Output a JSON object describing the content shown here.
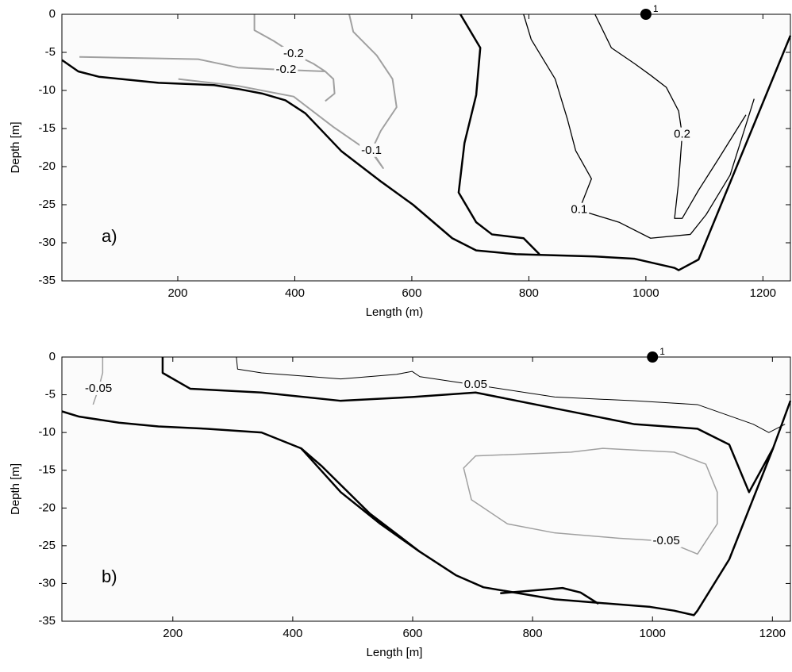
{
  "chart_data": [
    {
      "type": "contour",
      "panel_label": "a)",
      "x_label": "Length (m)",
      "y_label": "Depth [m]",
      "xlim": [
        2,
        1247
      ],
      "ylim": [
        -35,
        0
      ],
      "xticks": [
        200,
        400,
        600,
        800,
        1000,
        1200
      ],
      "yticks": [
        0,
        -5,
        -10,
        -15,
        -20,
        -25,
        -30,
        -35
      ],
      "station": {
        "x": 1000,
        "y": 0,
        "label": "1"
      },
      "contours": [
        {
          "color": "#000000",
          "line_width": 2.5,
          "x": [
            2,
            30,
            65,
            167,
            262,
            303,
            344,
            384,
            418,
            480,
            548,
            602,
            669,
            710,
            778,
            913,
            981,
            1049,
            1056,
            1090,
            1247
          ],
          "y": [
            -6,
            -7.5,
            -8.2,
            -9,
            -9.3,
            -9.8,
            -10.4,
            -11.3,
            -13,
            -18,
            -22,
            -25,
            -29.4,
            -31,
            -31.5,
            -31.8,
            -32.1,
            -33.3,
            -33.6,
            -32.2,
            -2.8
          ]
        },
        {
          "color": "#000000",
          "line_width": 2.5,
          "x": [
            683,
            717,
            710,
            690,
            680,
            710,
            737,
            791,
            818
          ],
          "y": [
            0,
            -4.4,
            -10.6,
            -16.9,
            -23.4,
            -27.3,
            -28.9,
            -29.4,
            -31.5
          ]
        },
        {
          "label": "-0.2",
          "color": "#a0a0a0",
          "line_width": 2,
          "x": [
            32,
            100,
            167,
            235,
            303,
            385,
            452,
            466,
            468,
            452
          ],
          "y": [
            -5.6,
            -5.7,
            -5.8,
            -5.9,
            -7,
            -7.3,
            -7.5,
            -8.5,
            -10.4,
            -11.4
          ]
        },
        {
          "label": "-0.2",
          "color": "#a0a0a0",
          "line_width": 2,
          "x": [
            331,
            331,
            364,
            398,
            432,
            452
          ],
          "y": [
            0,
            -2.1,
            -3.5,
            -5.2,
            -6.5,
            -7.5
          ]
        },
        {
          "label": "-0.1",
          "color": "#a0a0a0",
          "line_width": 2,
          "x": [
            201,
            303,
            398,
            466,
            534,
            551,
            531,
            547,
            574,
            567,
            540,
            500,
            493
          ],
          "y": [
            -8.5,
            -9.4,
            -10.8,
            -14.8,
            -18.4,
            -20.2,
            -17.9,
            -15.3,
            -12.2,
            -8.5,
            -5.4,
            -2.3,
            0
          ]
        },
        {
          "label": "0.1",
          "color": "#000000",
          "line_width": 1.3,
          "x": [
            791,
            804,
            845,
            866,
            880,
            907,
            886,
            954,
            1008,
            1076,
            1103,
            1144,
            1185
          ],
          "y": [
            0,
            -3.3,
            -8.5,
            -13.8,
            -17.9,
            -21.6,
            -25.7,
            -27.3,
            -29.4,
            -28.9,
            -26.3,
            -21.1,
            -11.1
          ]
        },
        {
          "label": "0.2",
          "color": "#000000",
          "line_width": 1.3,
          "x": [
            913,
            941,
            981,
            1008,
            1035,
            1056,
            1062,
            1056,
            1049,
            1062,
            1090,
            1124,
            1171
          ],
          "y": [
            0,
            -4.4,
            -6.5,
            -8,
            -9.6,
            -12.7,
            -15.8,
            -22,
            -26.8,
            -26.8,
            -23.1,
            -19,
            -13.2
          ]
        }
      ]
    },
    {
      "type": "contour",
      "panel_label": "b)",
      "x_label": "Length [m]",
      "y_label": "Depth [m]",
      "xlim": [
        15,
        1230
      ],
      "ylim": [
        -35,
        0
      ],
      "xticks": [
        200,
        400,
        600,
        800,
        1000,
        1200
      ],
      "yticks": [
        0,
        -5,
        -10,
        -15,
        -20,
        -25,
        -30,
        -35
      ],
      "station": {
        "x": 1000,
        "y": 0,
        "label": "1"
      },
      "contours": [
        {
          "color": "#000000",
          "line_width": 2.5,
          "x": [
            15,
            44,
            110,
            176,
            255,
            348,
            414,
            480,
            546,
            612,
            672,
            718,
            837,
            996,
            1036,
            1069,
            1075,
            1128,
            1201,
            1230
          ],
          "y": [
            -7.2,
            -7.9,
            -8.7,
            -9.2,
            -9.5,
            -10,
            -12.1,
            -17.9,
            -22.1,
            -25.8,
            -28.9,
            -30.5,
            -32.1,
            -33.1,
            -33.6,
            -34.2,
            -33.6,
            -26.8,
            -12.1,
            -5.8
          ]
        },
        {
          "color": "#000000",
          "line_width": 2.5,
          "x": [
            414,
            449,
            528,
            612
          ],
          "y": [
            -12.1,
            -14.5,
            -20.7,
            -25.8
          ]
        },
        {
          "color": "#000000",
          "line_width": 2.5,
          "x": [
            746,
            850,
            880,
            910
          ],
          "y": [
            -31.3,
            -30.6,
            -31.2,
            -32.7
          ]
        },
        {
          "color": "#000000",
          "line_width": 2.5,
          "x": [
            183,
            183,
            229,
            348,
            480,
            600,
            705,
            837,
            970,
            1075,
            1128,
            1161,
            1201
          ],
          "y": [
            0,
            -2.1,
            -4.2,
            -4.7,
            -5.8,
            -5.3,
            -4.7,
            -6.8,
            -8.9,
            -9.5,
            -11.6,
            -17.9,
            -12.1
          ]
        },
        {
          "label": "0.05",
          "color": "#000000",
          "line_width": 1,
          "x": [
            306,
            308,
            348,
            480,
            573,
            599,
            612,
            705,
            837,
            970,
            1075,
            1168,
            1194,
            1221
          ],
          "y": [
            0,
            -1.6,
            -2.1,
            -2.9,
            -2.3,
            -1.9,
            -2.6,
            -3.7,
            -5.3,
            -5.8,
            -6.3,
            -8.9,
            -10,
            -8.9
          ]
        },
        {
          "label": "-0.05",
          "color": "#a0a0a0",
          "line_width": 1.5,
          "x": [
            83,
            83,
            76,
            67
          ],
          "y": [
            0,
            -2.1,
            -4.2,
            -6.3
          ]
        },
        {
          "label": "-0.05",
          "color": "#a0a0a0",
          "line_width": 1.5,
          "x": [
            864,
            917,
            1036,
            1089,
            1108,
            1108,
            1075,
            1023,
            943,
            837,
            758,
            698,
            685,
            705,
            864
          ],
          "y": [
            -12.6,
            -12.1,
            -12.6,
            -14.2,
            -17.9,
            -22.1,
            -26.1,
            -24.4,
            -24,
            -23.3,
            -22.1,
            -18.9,
            -14.7,
            -13.1,
            -12.6
          ]
        }
      ]
    }
  ]
}
